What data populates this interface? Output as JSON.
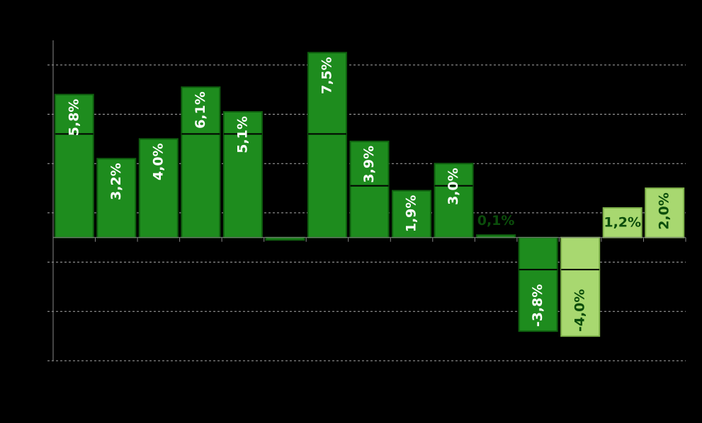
{
  "chart_data": {
    "type": "bar",
    "categories": [
      null,
      null,
      null,
      null,
      null,
      null,
      null,
      null,
      null,
      null,
      null,
      null,
      null,
      null,
      null
    ],
    "values": [
      5.8,
      3.2,
      4.0,
      6.1,
      5.1,
      -0.1,
      7.5,
      3.9,
      1.9,
      3.0,
      0.1,
      -3.8,
      -4.0,
      1.2,
      2.0
    ],
    "value_labels": [
      "5,8%",
      "3,2%",
      "4,0%",
      "6,1%",
      "5,1%",
      null,
      "7,5%",
      "3,9%",
      "1,9%",
      "3,0%",
      "0,1%",
      "-3,8%",
      "-4,0%",
      "1,2%",
      "2,0%"
    ],
    "colors": [
      "#1e8c1e",
      "#1e8c1e",
      "#1e8c1e",
      "#1e8c1e",
      "#1e8c1e",
      "#1e8c1e",
      "#1e8c1e",
      "#1e8c1e",
      "#1e8c1e",
      "#1e8c1e",
      "#1e8c1e",
      "#1e8c1e",
      "#a8d870",
      "#a8d870",
      "#a8d870"
    ],
    "reference_values": [
      4.2,
      null,
      null,
      4.2,
      4.2,
      null,
      4.2,
      2.1,
      null,
      2.1,
      null,
      -1.3,
      -1.3,
      null,
      null
    ],
    "ylim": [
      -5,
      8
    ],
    "yticks": [
      -5,
      -3,
      -1,
      1,
      3,
      5,
      7
    ],
    "grid": true
  }
}
